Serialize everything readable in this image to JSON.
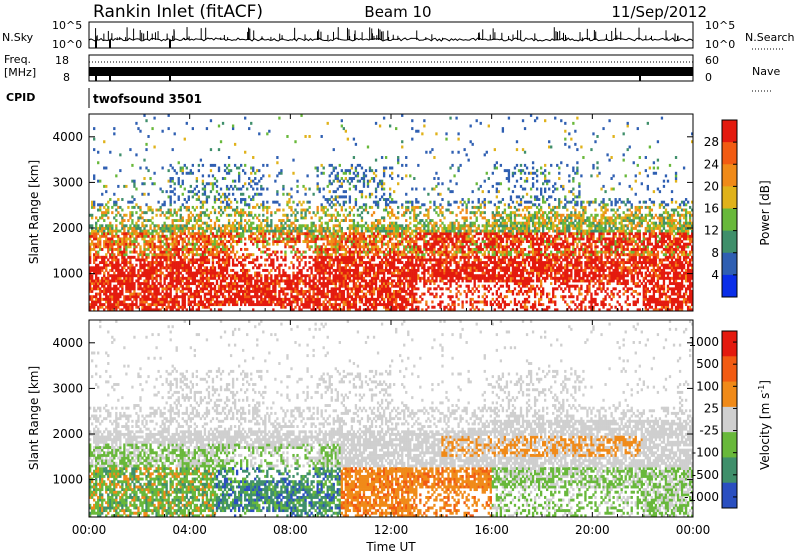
{
  "header": {
    "station": "Rankin Inlet (fitACF)",
    "beam": "Beam 10",
    "date": "11/Sep/2012"
  },
  "top_panels": {
    "nsky_label": "N.Sky",
    "nsearch_label": "N.Search",
    "nsky_ticks": [
      "10^5",
      "10^0"
    ],
    "nsearch_ticks": [
      "10^5",
      "10^0"
    ],
    "freq_label_1": "Freq.",
    "freq_label_2": "[MHz]",
    "freq_ticks": [
      "18",
      "8"
    ],
    "nave_label": "Nave",
    "nave_ticks": [
      "60",
      "0"
    ],
    "cpid_label": "CPID",
    "cpid_value": "twofsound 3501"
  },
  "colors": {
    "power": [
      "#0a2ee8",
      "#2f5fb2",
      "#3f8f6b",
      "#68b83a",
      "#e0b21a",
      "#f08a18",
      "#f25b12",
      "#e41a0e"
    ],
    "velocity": [
      "#2a4fc0",
      "#3f8f6b",
      "#68b83a",
      "#cfcfcf",
      "#f08a18",
      "#f25b12",
      "#e41a0e"
    ]
  },
  "chart_data": [
    {
      "type": "heatmap",
      "name": "power",
      "ylabel": "Slant Range [km]",
      "xlabel": "",
      "x_ticks": [
        "00:00",
        "04:00",
        "08:00",
        "12:00",
        "16:00",
        "20:00",
        "00:00"
      ],
      "xlim_hours": [
        0,
        24
      ],
      "y_ticks": [
        "1000",
        "2000",
        "3000",
        "4000"
      ],
      "ylim": [
        180,
        4500
      ],
      "colorbar_label": "Power [dB]",
      "colorbar_ticks": [
        "4",
        "8",
        "12",
        "16",
        "20",
        "24",
        "28"
      ],
      "colorbar_range": [
        0,
        30
      ]
    },
    {
      "type": "heatmap",
      "name": "velocity",
      "ylabel": "Slant Range [km]",
      "xlabel": "Time UT",
      "x_ticks": [
        "00:00",
        "04:00",
        "08:00",
        "12:00",
        "16:00",
        "20:00",
        "00:00"
      ],
      "xlim_hours": [
        0,
        24
      ],
      "y_ticks": [
        "1000",
        "2000",
        "3000",
        "4000"
      ],
      "ylim": [
        180,
        4500
      ],
      "colorbar_label": "Velocity [m s",
      "colorbar_label_exp": "-1",
      "colorbar_label_end": "]",
      "colorbar_ticks": [
        "1000",
        "500",
        "100",
        "25",
        "-25",
        "-100",
        "-500",
        "-1000"
      ]
    }
  ]
}
